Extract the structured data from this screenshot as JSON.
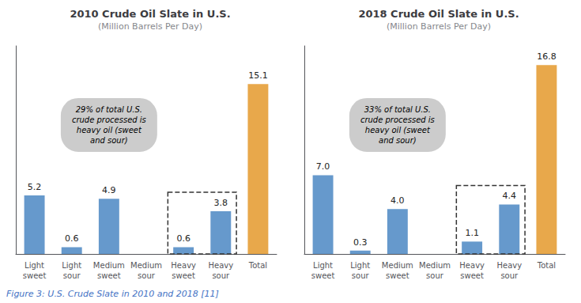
{
  "chart_data": [
    {
      "type": "bar",
      "title": "2010 Crude Oil Slate in U.S.",
      "subtitle": "(Million Barrels Per Day)",
      "categories": [
        "Light\nsweet",
        "Light\nsour",
        "Medium\nsweet",
        "Medium\nsour",
        "Heavy\nsweet",
        "Heavy\nsour",
        "Total"
      ],
      "values": [
        5.2,
        0.6,
        4.9,
        0.0,
        0.6,
        3.8,
        15.1
      ],
      "value_labels": [
        "5.2",
        "0.6",
        "4.9",
        null,
        "0.6",
        "3.8",
        "15.1"
      ],
      "colors": [
        "#6699CC",
        "#6699CC",
        "#6699CC",
        "#6699CC",
        "#6699CC",
        "#6699CC",
        "#E8A84B"
      ],
      "ylim": [
        0,
        18.5
      ],
      "grid": false,
      "tick_labels": "x",
      "data_labels": true,
      "annotations": [
        "29% of total U.S.\ncrude processed is\nheavy oil (sweet\nand sour)"
      ]
    },
    {
      "type": "bar",
      "title": "2018 Crude Oil Slate in U.S.",
      "subtitle": "(Million Barrels Per Day)",
      "categories": [
        "Light\nsweet",
        "Light\nsour",
        "Medium\nsweet",
        "Medium\nsour",
        "Heavy\nsweet",
        "Heavy\nsour",
        "Total"
      ],
      "values": [
        7.0,
        0.3,
        4.0,
        0.0,
        1.1,
        4.4,
        16.8
      ],
      "value_labels": [
        "7.0",
        "0.3",
        "4.0",
        null,
        "1.1",
        "4.4",
        "16.8"
      ],
      "colors": [
        "#6699CC",
        "#6699CC",
        "#6699CC",
        "#6699CC",
        "#6699CC",
        "#6699CC",
        "#E8A84B"
      ],
      "ylim": [
        0,
        18.5
      ],
      "grid": false,
      "tick_labels": "x",
      "data_labels": true,
      "annotations": [
        "33% of total U.S.\ncrude processed is\nheavy oil (sweet\nand sour)"
      ]
    }
  ],
  "caption": "Figure 3: U.S. Crude Slate in 2010 and 2018 [11]"
}
